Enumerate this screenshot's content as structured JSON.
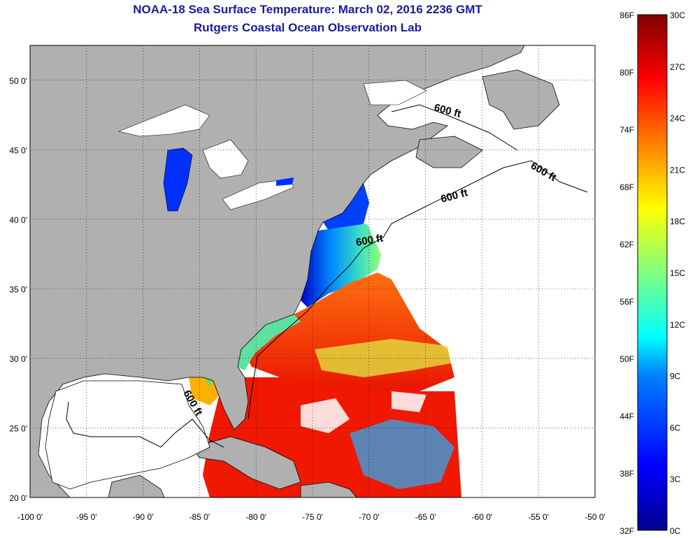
{
  "header": {
    "title": "NOAA-18 Sea Surface Temperature:  March 02, 2016 2236 GMT",
    "subtitle": "Rutgers Coastal Ocean Observation Lab"
  },
  "map": {
    "lon_range": [
      -100,
      -50
    ],
    "lat_range": [
      20,
      52.5
    ],
    "lon_ticks": [
      "-100 0'",
      "-95 0'",
      "-90 0'",
      "-85 0'",
      "-80 0'",
      "-75 0'",
      "-70 0'",
      "-65 0'",
      "-60 0'",
      "-55 0'",
      "-50 0'"
    ],
    "lat_ticks": [
      "20 0'",
      "25 0'",
      "30 0'",
      "35 0'",
      "40 0'",
      "45 0'",
      "50 0'"
    ],
    "lon_values": [
      -100,
      -95,
      -90,
      -85,
      -80,
      -75,
      -70,
      -65,
      -60,
      -55,
      -50
    ],
    "lat_values": [
      20,
      25,
      30,
      35,
      40,
      45,
      50
    ],
    "contour_label": "600 ft",
    "land_color": "#b0b0b0",
    "ocean_nodata_color": "#ffffff"
  },
  "colorbar": {
    "fahrenheit_labels": [
      "86F",
      "80F",
      "74F",
      "68F",
      "62F",
      "56F",
      "50F",
      "44F",
      "38F",
      "32F"
    ],
    "celsius_labels": [
      "30C",
      "27C",
      "24C",
      "21C",
      "18C",
      "15C",
      "12C",
      "9C",
      "6C",
      "3C",
      "0C"
    ],
    "colormap": [
      "#00008f",
      "#0000ff",
      "#0080ff",
      "#00ffff",
      "#80ff80",
      "#ffff00",
      "#ff8000",
      "#ff0000",
      "#800000"
    ]
  }
}
